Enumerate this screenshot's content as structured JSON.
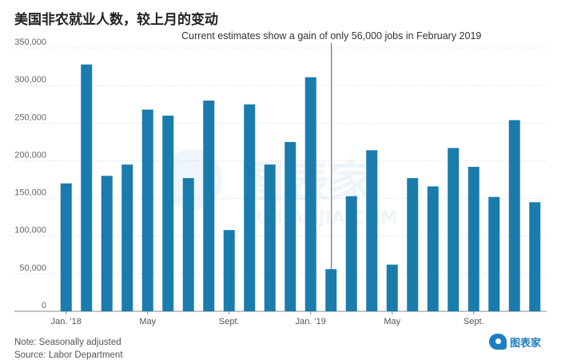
{
  "title": "美国非农就业人数，较上月的变动",
  "chart_data": {
    "type": "bar",
    "categories": [
      "Jan. '18",
      "Feb. '18",
      "Mar. '18",
      "Apr. '18",
      "May '18",
      "Jun. '18",
      "Jul. '18",
      "Aug. '18",
      "Sept. '18",
      "Oct. '18",
      "Nov. '18",
      "Dec. '18",
      "Jan. '19",
      "Feb. '19",
      "Mar. '19",
      "Apr. '19",
      "May '19",
      "Jun. '19",
      "Jul. '19",
      "Aug. '19",
      "Sept. '19",
      "Oct. '19",
      "Nov. '19",
      "Dec. '19"
    ],
    "values": [
      170000,
      328000,
      180000,
      195000,
      268000,
      260000,
      177000,
      280000,
      108000,
      275000,
      195000,
      225000,
      311000,
      56000,
      153000,
      214000,
      62000,
      177000,
      166000,
      217000,
      192000,
      152000,
      254000,
      145000
    ],
    "ylim": [
      0,
      350000
    ],
    "yticks": [
      0,
      50000,
      100000,
      150000,
      200000,
      250000,
      300000,
      350000
    ],
    "ytick_labels": [
      "0",
      "50,000",
      "100,000",
      "150,000",
      "200,000",
      "250,000",
      "300,000",
      "350,000"
    ],
    "xtick_labels": [
      {
        "index": 0,
        "label": "Jan. '18"
      },
      {
        "index": 4,
        "label": "May"
      },
      {
        "index": 8,
        "label": "Sept."
      },
      {
        "index": 12,
        "label": "Jan. '19"
      },
      {
        "index": 16,
        "label": "May"
      },
      {
        "index": 20,
        "label": "Sept."
      }
    ],
    "annotation": {
      "text": "Current estimates show a gain of only 56,000 jobs in February 2019",
      "index": 13
    },
    "bar_color": "#1a7cad",
    "grid": true,
    "xlabel": "",
    "ylabel": ""
  },
  "notes": {
    "note": "Note: Seasonally adjusted",
    "source": "Source: Labor Department"
  },
  "logo": {
    "text": "图表家"
  },
  "watermark": {
    "text": "图表家",
    "subtext": "TUBIAOJIA.COM"
  }
}
